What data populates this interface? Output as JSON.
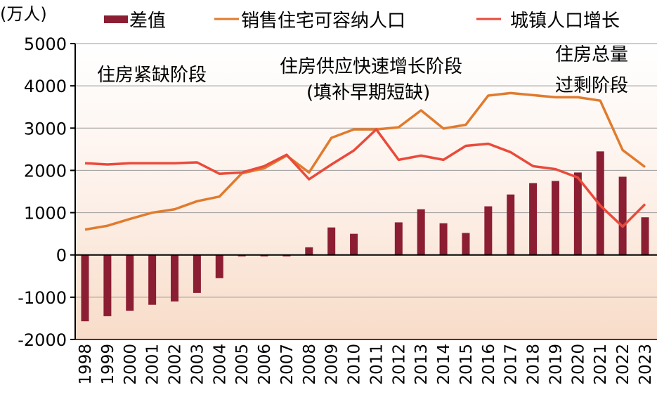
{
  "chart_data": {
    "type": "bar+line",
    "unit_label": "(万人)",
    "ylim": [
      -2000,
      5000
    ],
    "yticks": [
      5000,
      4000,
      3000,
      2000,
      1000,
      0,
      -1000,
      -2000
    ],
    "categories": [
      "1998",
      "1999",
      "2000",
      "2001",
      "2002",
      "2003",
      "2004",
      "2005",
      "2006",
      "2007",
      "2008",
      "2009",
      "2010",
      "2011",
      "2012",
      "2013",
      "2014",
      "2015",
      "2016",
      "2017",
      "2018",
      "2019",
      "2020",
      "2021",
      "2022",
      "2023"
    ],
    "series": [
      {
        "name": "差值",
        "type": "bar",
        "color": "#8b1e32",
        "values": [
          -1570,
          -1450,
          -1320,
          -1180,
          -1100,
          -900,
          -550,
          -30,
          -30,
          -30,
          180,
          650,
          500,
          0,
          770,
          1080,
          750,
          520,
          1150,
          1430,
          1700,
          1750,
          1950,
          2450,
          1850,
          890
        ]
      },
      {
        "name": "销售住宅可容纳人口",
        "type": "line",
        "color": "#e07b2e",
        "values": [
          600,
          690,
          850,
          1000,
          1080,
          1270,
          1380,
          1930,
          2050,
          2350,
          1950,
          2770,
          2970,
          2970,
          3020,
          3420,
          2990,
          3080,
          3770,
          3830,
          3780,
          3730,
          3730,
          3650,
          2480,
          2080
        ]
      },
      {
        "name": "城镇人口增长",
        "type": "line",
        "color": "#ea4a3a",
        "values": [
          2170,
          2140,
          2170,
          2170,
          2170,
          2190,
          1920,
          1950,
          2100,
          2370,
          1790,
          2140,
          2470,
          2970,
          2250,
          2350,
          2250,
          2580,
          2630,
          2430,
          2100,
          2030,
          1830,
          1170,
          670,
          1200
        ]
      }
    ],
    "annotations": [
      "住房紧缺阶段",
      "住房供应快速增长阶段",
      "(填补早期短缺)",
      "住房总量",
      "过剩阶段"
    ],
    "grid": true,
    "legend": "top"
  }
}
